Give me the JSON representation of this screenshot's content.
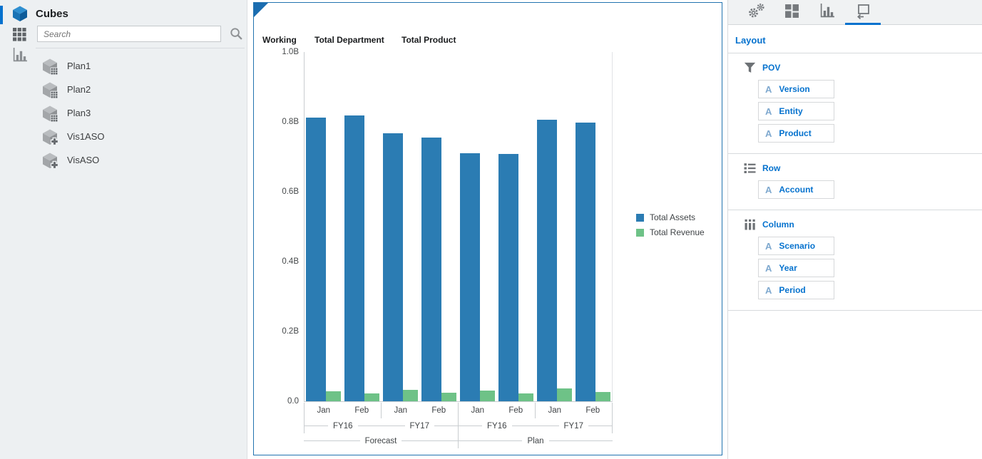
{
  "left_panel": {
    "title": "Cubes",
    "search": {
      "placeholder": "Search"
    },
    "items": [
      {
        "label": "Plan1",
        "icon": "cube-grid-icon"
      },
      {
        "label": "Plan2",
        "icon": "cube-grid-icon"
      },
      {
        "label": "Plan3",
        "icon": "cube-grid-icon"
      },
      {
        "label": "Vis1ASO",
        "icon": "cube-plus-icon"
      },
      {
        "label": "VisASO",
        "icon": "cube-plus-icon"
      }
    ]
  },
  "chart_panel": {
    "pov_members": [
      "Working",
      "Total Department",
      "Total Product"
    ]
  },
  "right_panel": {
    "title": "Layout",
    "tabs": [
      {
        "name": "settings",
        "icon": "gears-icon",
        "active": false
      },
      {
        "name": "visualization",
        "icon": "tiles-icon",
        "active": false
      },
      {
        "name": "chart-type",
        "icon": "bar-chart-icon",
        "active": false
      },
      {
        "name": "layout",
        "icon": "layout-icon",
        "active": true
      }
    ],
    "sections": [
      {
        "label": "POV",
        "icon": "funnel-icon",
        "chips": [
          "Version",
          "Entity",
          "Product"
        ]
      },
      {
        "label": "Row",
        "icon": "rows-icon",
        "chips": [
          "Account"
        ]
      },
      {
        "label": "Column",
        "icon": "columns-icon",
        "chips": [
          "Scenario",
          "Year",
          "Period"
        ]
      }
    ]
  },
  "chart_data": {
    "type": "bar",
    "title": "",
    "categories": [
      "Jan",
      "Feb",
      "Jan",
      "Feb",
      "Jan",
      "Feb",
      "Jan",
      "Feb"
    ],
    "x_hierarchy": {
      "years": [
        "FY16",
        "FY17",
        "FY16",
        "FY17"
      ],
      "scenarios": [
        "Forecast",
        "Plan"
      ]
    },
    "series": [
      {
        "name": "Total Assets",
        "color": "#2b7cb3",
        "values_billions": [
          0.813,
          0.819,
          0.767,
          0.756,
          0.711,
          0.708,
          0.806,
          0.798
        ]
      },
      {
        "name": "Total Revenue",
        "color": "#6ec287",
        "values_billions": [
          0.029,
          0.023,
          0.033,
          0.025,
          0.03,
          0.023,
          0.037,
          0.026
        ]
      }
    ],
    "y_ticks": [
      "1.0B",
      "0.8B",
      "0.6B",
      "0.4B",
      "0.2B",
      "0.0"
    ],
    "ylim_billions": [
      0,
      1.0
    ],
    "grid": false,
    "legend_position": "right"
  },
  "colors": {
    "accent_blue": "#0572ce",
    "bar_blue": "#2b7cb3",
    "bar_green": "#6ec287",
    "chart_border": "#2273b0"
  }
}
